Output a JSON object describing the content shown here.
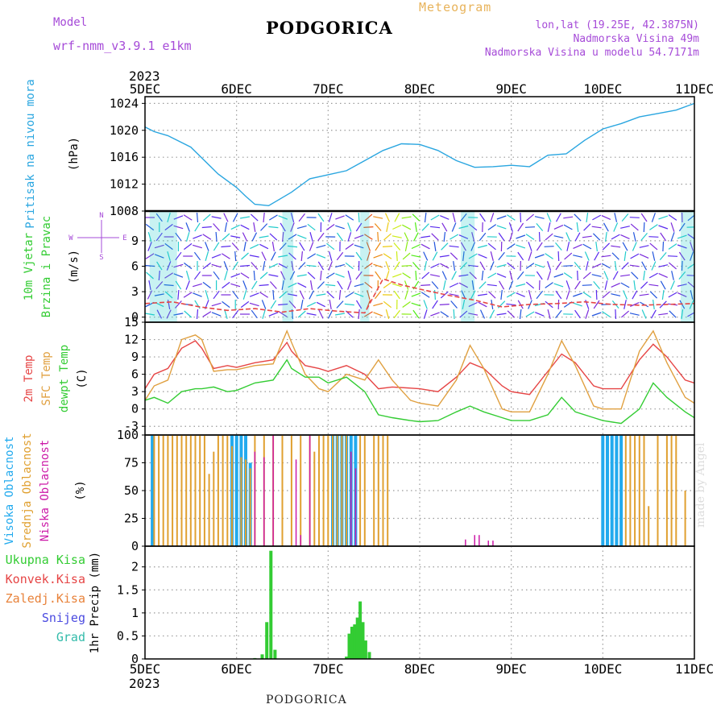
{
  "header": {
    "title": "PODGORICA",
    "meteogram": "Meteogram",
    "model_label": "Model",
    "model_name": "wrf-nmm_v3.9.1 e1km",
    "lonlat": "lon,lat (19.25E, 42.3875N)",
    "altitude": "Nadmorska Visina 49m",
    "model_altitude": "Nadmorska Visina u modelu 54.7171m",
    "bottom_title": "PODGORICA",
    "credit": "made by Angel"
  },
  "colors": {
    "pressure": "#2aa6e0",
    "t2m": "#e64545",
    "sfc": "#e0a040",
    "dewpt": "#33cc33",
    "high_cloud": "#22aaee",
    "mid_cloud": "#e0a030",
    "low_cloud": "#cc1aa8",
    "precip": "#33cc33"
  },
  "chart_data": [
    {
      "type": "line",
      "panel": "pressure",
      "ylabel_lines": [
        "Pritisak na nivou mora"
      ],
      "unit": "(hPa)",
      "ylim": [
        1008,
        1025
      ],
      "yticks": [
        1008,
        1012,
        1016,
        1020,
        1024
      ],
      "xticks": [
        "5DEC",
        "6DEC",
        "7DEC",
        "8DEC",
        "9DEC",
        "10DEC",
        "11DEC"
      ],
      "year": "2023",
      "grid": true,
      "x": [
        0,
        0.1,
        0.25,
        0.5,
        0.65,
        0.8,
        1.0,
        1.1,
        1.2,
        1.35,
        1.5,
        1.6,
        1.8,
        2.0,
        2.2,
        2.4,
        2.6,
        2.8,
        3.0,
        3.2,
        3.4,
        3.6,
        3.8,
        4.0,
        4.2,
        4.4,
        4.6,
        4.8,
        5.0,
        5.2,
        5.4,
        5.6,
        5.8,
        6.0
      ],
      "y": [
        1020.5,
        1019.8,
        1019.2,
        1017.5,
        1015.5,
        1013.5,
        1011.5,
        1010.2,
        1009.0,
        1008.8,
        1010.0,
        1010.8,
        1012.8,
        1013.4,
        1014.0,
        1015.5,
        1017.0,
        1018.0,
        1017.9,
        1017.0,
        1015.5,
        1014.5,
        1014.6,
        1014.8,
        1014.6,
        1016.3,
        1016.5,
        1018.5,
        1020.2,
        1021.0,
        1022.0,
        1022.5,
        1023.0,
        1024.0
      ],
      "series": [
        {
          "name": "",
          "color_key": "pressure"
        }
      ]
    },
    {
      "type": "scatter",
      "panel": "wind",
      "ylabel_lines": [
        "10m Vjetar",
        "Brzina i Pravac"
      ],
      "unit": "(m/s)",
      "compass": {
        "n": "N",
        "w": "W",
        "e": "E",
        "s": "S"
      },
      "ylim": [
        -0.6,
        12.5
      ],
      "yticks": [
        0,
        3,
        6,
        9
      ],
      "grid": true,
      "speed_x": [
        0,
        0.3,
        0.6,
        0.9,
        1.2,
        1.5,
        1.8,
        2.1,
        2.4,
        2.6,
        2.8,
        3.0,
        3.3,
        3.6,
        3.9,
        4.2,
        4.5,
        4.8,
        5.1,
        5.4,
        5.7,
        6.0
      ],
      "speed_y": [
        1.6,
        1.8,
        1.2,
        0.8,
        1.0,
        0.6,
        1.0,
        0.7,
        0.5,
        4.5,
        3.8,
        3.3,
        2.6,
        2.0,
        1.2,
        1.5,
        1.6,
        1.8,
        1.5,
        1.4,
        1.5,
        1.6
      ]
    },
    {
      "type": "line",
      "panel": "temperature",
      "ylabel_lines": [
        "2m Temp",
        "SFC Temp",
        "dewpt Temp"
      ],
      "unit": "(C)",
      "ylim": [
        -4.5,
        15
      ],
      "yticks": [
        -3,
        0,
        3,
        6,
        9,
        12,
        15
      ],
      "grid": true,
      "x": [
        0,
        0.1,
        0.25,
        0.4,
        0.55,
        0.62,
        0.75,
        0.9,
        1.0,
        1.2,
        1.4,
        1.55,
        1.6,
        1.75,
        1.9,
        2.0,
        2.2,
        2.4,
        2.55,
        2.7,
        2.9,
        3.0,
        3.2,
        3.4,
        3.55,
        3.7,
        3.9,
        4.0,
        4.2,
        4.4,
        4.55,
        4.7,
        4.9,
        5.0,
        5.2,
        5.4,
        5.55,
        5.7,
        5.9,
        6.0
      ],
      "series": [
        {
          "name": "2m Temp",
          "color_key": "t2m",
          "values": [
            3.5,
            6.0,
            7.0,
            10.5,
            11.8,
            10.5,
            7.0,
            7.5,
            7.2,
            8.0,
            8.5,
            11.5,
            10.0,
            7.5,
            7.0,
            6.5,
            7.5,
            6.0,
            3.5,
            3.8,
            3.6,
            3.5,
            3.0,
            5.5,
            8.0,
            7.0,
            4.0,
            3.0,
            2.5,
            6.5,
            9.5,
            8.0,
            4.0,
            3.5,
            3.5,
            8.5,
            11.2,
            9.0,
            5.0,
            4.5
          ]
        },
        {
          "name": "SFC Temp",
          "color_key": "sfc",
          "values": [
            1.5,
            4.0,
            5.0,
            12.0,
            12.8,
            12.0,
            6.5,
            6.8,
            6.8,
            7.5,
            7.8,
            13.5,
            11.5,
            6.0,
            3.5,
            3.0,
            6.0,
            5.0,
            8.5,
            5.0,
            1.5,
            1.0,
            0.5,
            5.0,
            11.0,
            7.0,
            0.0,
            -0.5,
            -0.5,
            6.0,
            11.8,
            7.5,
            0.5,
            0.0,
            0.0,
            10.0,
            13.5,
            8.0,
            2.0,
            1.0
          ]
        },
        {
          "name": "dewpt Temp",
          "color_key": "dewpt",
          "values": [
            1.5,
            2.0,
            1.0,
            3.0,
            3.5,
            3.5,
            3.8,
            3.0,
            3.2,
            4.5,
            5.0,
            8.5,
            7.0,
            5.5,
            5.5,
            4.5,
            5.5,
            3.0,
            -1.0,
            -1.5,
            -2.0,
            -2.2,
            -2.0,
            -0.5,
            0.5,
            -0.5,
            -1.5,
            -2.0,
            -2.0,
            -1.0,
            2.0,
            -0.5,
            -1.5,
            -2.0,
            -2.5,
            0.0,
            4.5,
            2.0,
            -0.5,
            -1.5
          ]
        }
      ]
    },
    {
      "type": "bar",
      "panel": "cloud",
      "ylabel_lines": [
        "Visoka Oblacnost",
        "Srednja Oblacnost",
        "Niska Oblacnost"
      ],
      "unit": "(%)",
      "ylim": [
        0,
        100
      ],
      "yticks": [
        0,
        25,
        50,
        75,
        100
      ],
      "grid": true,
      "high": {
        "name": "Visoka Oblacnost",
        "color_key": "high_cloud",
        "bars": [
          [
            0.08,
            100
          ],
          [
            0.95,
            100
          ],
          [
            1.0,
            100
          ],
          [
            1.05,
            100
          ],
          [
            1.1,
            100
          ],
          [
            1.15,
            75
          ],
          [
            2.05,
            100
          ],
          [
            2.1,
            100
          ],
          [
            2.15,
            100
          ],
          [
            2.2,
            100
          ],
          [
            2.25,
            100
          ],
          [
            2.3,
            100
          ],
          [
            5.0,
            100
          ],
          [
            5.05,
            100
          ],
          [
            5.1,
            100
          ],
          [
            5.15,
            100
          ],
          [
            5.2,
            100
          ]
        ]
      },
      "mid": {
        "name": "Srednja Oblacnost",
        "color_key": "mid_cloud",
        "bars": [
          [
            0.1,
            100
          ],
          [
            0.15,
            100
          ],
          [
            0.2,
            100
          ],
          [
            0.25,
            100
          ],
          [
            0.3,
            100
          ],
          [
            0.35,
            100
          ],
          [
            0.4,
            100
          ],
          [
            0.45,
            100
          ],
          [
            0.5,
            100
          ],
          [
            0.55,
            100
          ],
          [
            0.6,
            100
          ],
          [
            0.65,
            100
          ],
          [
            0.7,
            65
          ],
          [
            0.75,
            85
          ],
          [
            0.8,
            100
          ],
          [
            0.85,
            100
          ],
          [
            0.9,
            100
          ],
          [
            0.95,
            90
          ],
          [
            1.05,
            80
          ],
          [
            1.1,
            78
          ],
          [
            1.15,
            70
          ],
          [
            1.2,
            100
          ],
          [
            1.3,
            100
          ],
          [
            1.4,
            100
          ],
          [
            1.5,
            100
          ],
          [
            1.6,
            100
          ],
          [
            1.7,
            100
          ],
          [
            1.8,
            100
          ],
          [
            1.85,
            85
          ],
          [
            1.9,
            100
          ],
          [
            1.95,
            100
          ],
          [
            2.0,
            100
          ],
          [
            2.05,
            100
          ],
          [
            2.1,
            100
          ],
          [
            2.15,
            100
          ],
          [
            2.2,
            100
          ],
          [
            2.35,
            100
          ],
          [
            2.4,
            100
          ],
          [
            2.5,
            100
          ],
          [
            2.55,
            100
          ],
          [
            2.6,
            100
          ],
          [
            2.65,
            100
          ],
          [
            5.25,
            100
          ],
          [
            5.3,
            100
          ],
          [
            5.35,
            100
          ],
          [
            5.4,
            100
          ],
          [
            5.45,
            100
          ],
          [
            5.5,
            36
          ],
          [
            5.6,
            100
          ],
          [
            5.7,
            100
          ],
          [
            5.75,
            100
          ],
          [
            5.8,
            100
          ],
          [
            5.9,
            50
          ]
        ]
      },
      "low": {
        "name": "Niska Oblacnost",
        "color_key": "low_cloud",
        "bars": [
          [
            1.2,
            85
          ],
          [
            1.3,
            80
          ],
          [
            1.4,
            100
          ],
          [
            1.65,
            78
          ],
          [
            1.7,
            10
          ],
          [
            1.8,
            100
          ],
          [
            2.25,
            85
          ],
          [
            2.3,
            70
          ],
          [
            3.5,
            6
          ],
          [
            3.6,
            10
          ],
          [
            3.65,
            10
          ],
          [
            3.75,
            5
          ],
          [
            3.8,
            5
          ]
        ]
      }
    },
    {
      "type": "bar",
      "panel": "precip",
      "ylabel_lines": [
        "1hr Precip (mm)"
      ],
      "legend": [
        "Ukupna Kisa",
        "Konvek.Kisa",
        "Zaledj.Kisa",
        "Snijeg",
        "Grad"
      ],
      "ylim": [
        0,
        2.45
      ],
      "yticks": [
        0,
        0.5,
        1,
        1.5,
        2
      ],
      "yticklabels": [
        "0",
        "0.5",
        "1",
        "1.5",
        "2"
      ],
      "grid": true,
      "bars": [
        [
          1.2,
          0.02
        ],
        [
          1.28,
          0.1
        ],
        [
          1.33,
          0.8
        ],
        [
          1.375,
          2.35
        ],
        [
          1.42,
          0.2
        ],
        [
          2.2,
          0.05
        ],
        [
          2.23,
          0.55
        ],
        [
          2.26,
          0.7
        ],
        [
          2.29,
          0.75
        ],
        [
          2.32,
          0.9
        ],
        [
          2.35,
          1.25
        ],
        [
          2.38,
          0.8
        ],
        [
          2.41,
          0.4
        ],
        [
          2.45,
          0.15
        ]
      ]
    }
  ]
}
